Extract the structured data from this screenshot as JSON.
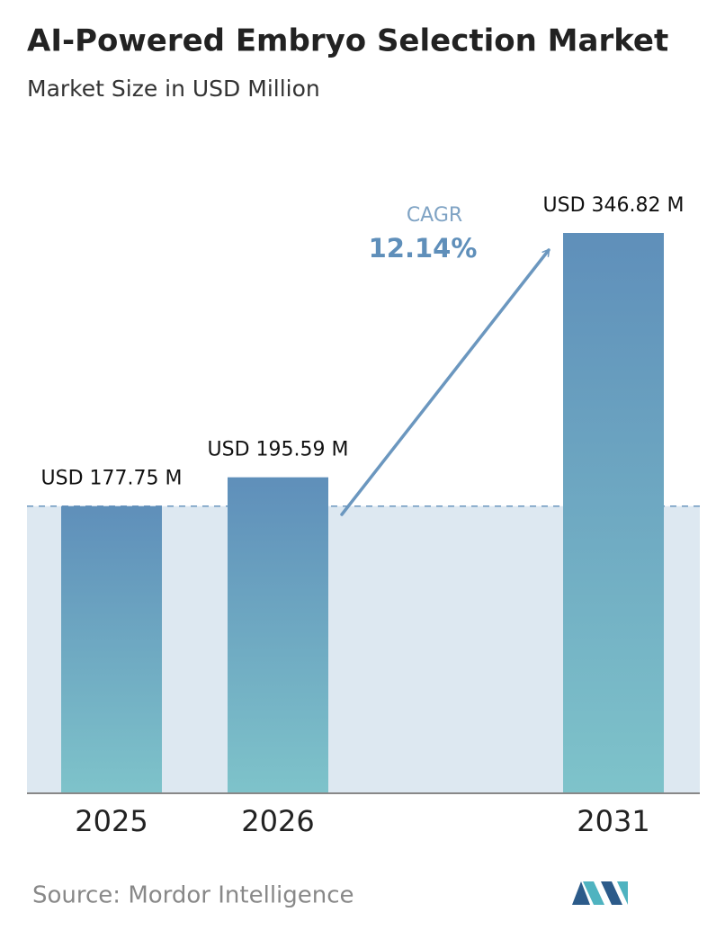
{
  "chart_data": {
    "type": "bar",
    "title": "AI-Powered Embryo Selection Market",
    "subtitle": "Market Size in USD Million",
    "categories": [
      "2025",
      "2026",
      "2031"
    ],
    "values": [
      177.75,
      195.59,
      346.82
    ],
    "value_labels": [
      "USD 177.75 M",
      "USD 195.59 M",
      "USD 346.82 M"
    ],
    "annotations": {
      "cagr_label": "CAGR",
      "cagr_value": "12.14%"
    },
    "source": "Source:  Mordor Intelligence"
  }
}
